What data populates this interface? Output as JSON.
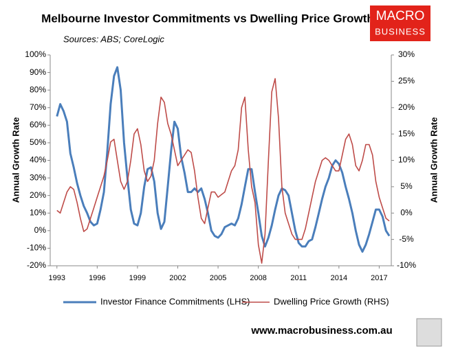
{
  "chart_data": {
    "type": "line",
    "title": "Melbourne Investor Commitments vs Dwelling Price Growth",
    "subtitle": "Sources: ABS; CoreLogic",
    "ylabel": "Annual Growth Rate",
    "y2label": "Annual Growth Rate",
    "footer": "www.macrobusiness.com.au",
    "logo": [
      "MACRO",
      "BUSINESS"
    ],
    "x": [
      1993,
      1993.25,
      1993.5,
      1993.75,
      1994,
      1994.25,
      1994.5,
      1994.75,
      1995,
      1995.25,
      1995.5,
      1995.75,
      1996,
      1996.25,
      1996.5,
      1996.75,
      1997,
      1997.25,
      1997.5,
      1997.75,
      1998,
      1998.25,
      1998.5,
      1998.75,
      1999,
      1999.25,
      1999.5,
      1999.75,
      2000,
      2000.25,
      2000.5,
      2000.75,
      2001,
      2001.25,
      2001.5,
      2001.75,
      2002,
      2002.25,
      2002.5,
      2002.75,
      2003,
      2003.25,
      2003.5,
      2003.75,
      2004,
      2004.25,
      2004.5,
      2004.75,
      2005,
      2005.25,
      2005.5,
      2005.75,
      2006,
      2006.25,
      2006.5,
      2006.75,
      2007,
      2007.25,
      2007.5,
      2007.75,
      2008,
      2008.25,
      2008.5,
      2008.75,
      2009,
      2009.25,
      2009.5,
      2009.75,
      2010,
      2010.25,
      2010.5,
      2010.75,
      2011,
      2011.25,
      2011.5,
      2011.75,
      2012,
      2012.25,
      2012.5,
      2012.75,
      2013,
      2013.25,
      2013.5,
      2013.75,
      2014,
      2014.25,
      2014.5,
      2014.75,
      2015,
      2015.25,
      2015.5,
      2015.75,
      2016,
      2016.25,
      2016.5,
      2016.75,
      2017,
      2017.25,
      2017.5,
      2017.75
    ],
    "series": [
      {
        "name": "Investor Finance Commitments (LHS)",
        "color": "#4a7ebb",
        "axis": "y",
        "values": [
          65,
          72,
          68,
          62,
          44,
          36,
          27,
          20,
          14,
          10,
          5,
          3,
          4,
          12,
          22,
          45,
          72,
          88,
          93,
          80,
          50,
          30,
          12,
          4,
          3,
          10,
          25,
          35,
          36,
          28,
          10,
          1,
          5,
          25,
          45,
          62,
          58,
          42,
          33,
          22,
          22,
          24,
          22,
          24,
          18,
          10,
          0,
          -3,
          -4,
          -2,
          2,
          3,
          4,
          3,
          7,
          15,
          25,
          35,
          35,
          22,
          10,
          -3,
          -9,
          -4,
          3,
          12,
          20,
          24,
          23,
          20,
          10,
          0,
          -7,
          -9,
          -9,
          -6,
          -5,
          2,
          10,
          18,
          25,
          30,
          37,
          40,
          38,
          33,
          25,
          18,
          10,
          0,
          -8,
          -12,
          -8,
          -2,
          5,
          12,
          12,
          8,
          0,
          -3
        ]
      },
      {
        "name": "Dwelling Price Growth (RHS)",
        "color": "#be4b48",
        "axis": "y2",
        "values": [
          0.5,
          0,
          2,
          4,
          5,
          4.5,
          2,
          -1,
          -3.5,
          -3,
          -1,
          1,
          3,
          5,
          7,
          10,
          13.5,
          14,
          10,
          6,
          4.5,
          6,
          10,
          15,
          16,
          13,
          8,
          6,
          7,
          10,
          17,
          22,
          21,
          17,
          15,
          12,
          9,
          10,
          11,
          12,
          11.5,
          8,
          3,
          -1,
          -2,
          1,
          4,
          4,
          3,
          3.5,
          4,
          6,
          8,
          9,
          12,
          20,
          22,
          12,
          5,
          2,
          -6,
          -9.5,
          -4,
          10,
          23,
          25.5,
          18,
          5,
          0,
          -2,
          -4,
          -5,
          -5,
          -5,
          -3,
          0,
          3,
          6,
          8,
          10,
          10.5,
          10,
          9,
          8,
          8,
          11,
          14,
          15,
          13,
          9,
          8,
          10,
          13,
          13,
          11,
          6,
          3,
          1,
          -1,
          -1.5
        ]
      }
    ],
    "xlim": [
      1992.5,
      2017.9
    ],
    "xticks": [
      1993,
      1996,
      1999,
      2002,
      2005,
      2008,
      2011,
      2014,
      2017
    ],
    "ylim": [
      -20,
      100
    ],
    "yticks": [
      {
        "value": -20,
        "label": "-20%"
      },
      {
        "value": -10,
        "label": "-10%"
      },
      {
        "value": 0,
        "label": "0%"
      },
      {
        "value": 10,
        "label": "10%"
      },
      {
        "value": 20,
        "label": "20%"
      },
      {
        "value": 30,
        "label": "30%"
      },
      {
        "value": 40,
        "label": "40%"
      },
      {
        "value": 50,
        "label": "50%"
      },
      {
        "value": 60,
        "label": "60%"
      },
      {
        "value": 70,
        "label": "70%"
      },
      {
        "value": 80,
        "label": "80%"
      },
      {
        "value": 90,
        "label": "90%"
      },
      {
        "value": 100,
        "label": "100%"
      }
    ],
    "y2lim": [
      -10,
      30
    ],
    "y2ticks": [
      {
        "value": -10,
        "label": "-10%"
      },
      {
        "value": -5,
        "label": "-5%"
      },
      {
        "value": 0,
        "label": "0%"
      },
      {
        "value": 5,
        "label": "5%"
      },
      {
        "value": 10,
        "label": "10%"
      },
      {
        "value": 15,
        "label": "15%"
      },
      {
        "value": 20,
        "label": "20%"
      },
      {
        "value": 25,
        "label": "25%"
      },
      {
        "value": 30,
        "label": "30%"
      }
    ],
    "grid": false
  }
}
